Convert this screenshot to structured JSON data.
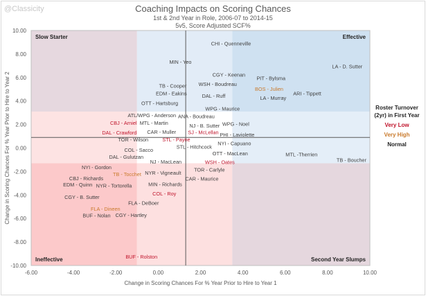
{
  "watermark": "@Classicity",
  "chart_data": {
    "type": "scatter",
    "title": "Coaching Impacts on Scoring Chances",
    "subtitle_1": "1st & 2nd Year in Role, 2006-07 to 2014-15",
    "subtitle_2": "5v5, Score Adjusted SCF%",
    "xlabel": "Change in Scoring Chances For % Year Prior to Hire to Year 1",
    "ylabel": "Change in Scoring Chances For % Year Prior to Hire to Year 2",
    "xlim": [
      -6,
      10
    ],
    "ylim": [
      -10,
      10
    ],
    "xticks": [
      "-6.00",
      "-4.00",
      "-2.00",
      "0.00",
      "2.00",
      "4.00",
      "6.00",
      "8.00",
      "10.00"
    ],
    "yticks": [
      "10.00",
      "8.00",
      "6.00",
      "4.00",
      "2.00",
      "0.00",
      "-2.00",
      "-4.00",
      "-6.00",
      "-8.00",
      "-10.00"
    ],
    "grid": false,
    "reference_lines": {
      "x": 1.3,
      "y": 0.9
    },
    "zone_bounds": {
      "x": [
        -1.0,
        3.5
      ],
      "y": [
        -1.3,
        3.1
      ]
    },
    "zone_colors": [
      [
        "#e6d8df",
        "#e2ecf7",
        "#cfe1f1"
      ],
      [
        "#fde3e3",
        "#ffffff",
        "#e4eef8"
      ],
      [
        "#fcc9ca",
        "#fde0e0",
        "#e5d7de"
      ]
    ],
    "quadrant_labels": {
      "top_left": "Slow Starter",
      "top_right": "Effective",
      "bottom_left": "Ineffective",
      "bottom_right": "Second Year Slumps"
    },
    "legend": {
      "title": "Roster Turnover (2yr) in First Year",
      "items": [
        {
          "key": "very_low",
          "label": "Very Low",
          "color": "#c0142b"
        },
        {
          "key": "very_high",
          "label": "Very High",
          "color": "#c97a2c"
        },
        {
          "key": "normal",
          "label": "Normal",
          "color": "#404040"
        }
      ]
    },
    "points": [
      {
        "label": "CHI - Quenneville",
        "x": 3.44,
        "y": 8.88,
        "group": "normal"
      },
      {
        "label": "LA - D. Sutter",
        "x": 8.93,
        "y": 6.93,
        "group": "normal"
      },
      {
        "label": "MIN - Yeo",
        "x": 1.05,
        "y": 7.32,
        "group": "normal"
      },
      {
        "label": "CGY - Keenan",
        "x": 3.34,
        "y": 6.22,
        "group": "normal"
      },
      {
        "label": "WSH - Boudreau",
        "x": 2.81,
        "y": 5.93,
        "group": "normal"
      },
      {
        "label": "PIT - Bylsma",
        "x": 5.33,
        "y": 5.93,
        "group": "normal"
      },
      {
        "label": "BOS - Julien",
        "x": 5.24,
        "y": 5.52,
        "group": "very_high"
      },
      {
        "label": "TB - Cooper",
        "x": 0.69,
        "y": 5.28,
        "group": "normal"
      },
      {
        "label": "DAL - Ruff",
        "x": 2.62,
        "y": 4.93,
        "group": "normal"
      },
      {
        "label": "LA - Murray",
        "x": 5.43,
        "y": 4.75,
        "group": "normal"
      },
      {
        "label": "ARI - Tippett",
        "x": 7.04,
        "y": 4.63,
        "group": "normal"
      },
      {
        "label": "EDM - Eakins",
        "x": 0.62,
        "y": 4.63,
        "group": "normal"
      },
      {
        "label": "OTT - Hartsburg",
        "x": 0.07,
        "y": 3.8,
        "group": "normal"
      },
      {
        "label": "ATL/WPG - Anderson",
        "x": -0.3,
        "y": 3.27,
        "group": "normal"
      },
      {
        "label": "WPG - Maurice",
        "x": 3.04,
        "y": 3.33,
        "group": "normal"
      },
      {
        "label": "CBJ - Arniel",
        "x": -1.64,
        "y": 2.62,
        "group": "very_low"
      },
      {
        "label": "MTL - Martin",
        "x": -0.2,
        "y": 2.62,
        "group": "normal"
      },
      {
        "label": "ANA - Boudreau",
        "x": 1.8,
        "y": 2.68,
        "group": "normal"
      },
      {
        "label": "NJ - B. Sutter",
        "x": 2.19,
        "y": 2.39,
        "group": "normal"
      },
      {
        "label": "WPG - Noel",
        "x": 3.01,
        "y": 2.04,
        "group": "normal"
      },
      {
        "label": "CAR - Muller",
        "x": 0.16,
        "y": 1.86,
        "group": "normal"
      },
      {
        "label": "PHI - Laviolette",
        "x": 3.73,
        "y": 1.62,
        "group": "normal"
      },
      {
        "label": "SJ - McLellan",
        "x": 3.44,
        "y": 1.33,
        "group": "very_low"
      },
      {
        "label": "TOR - Wilson",
        "x": -1.18,
        "y": 1.21,
        "group": "normal"
      },
      {
        "label": "STL - Payne",
        "x": 0.2,
        "y": 1.21,
        "group": "very_low"
      },
      {
        "label": "STL - Hitchcock",
        "x": 1.7,
        "y": 1.09,
        "group": "normal"
      },
      {
        "label": "DAL - Crawford",
        "x": 0.13,
        "y": 0.8,
        "group": "very_low"
      },
      {
        "label": "COL - Sacco",
        "x": -0.92,
        "y": 0.32,
        "group": "normal"
      },
      {
        "label": "NJ - MacLean",
        "x": 0.36,
        "y": 0.32,
        "group": "normal"
      },
      {
        "label": "NYI - Capuano",
        "x": 2.29,
        "y": 0.38,
        "group": "normal"
      },
      {
        "label": "OTT - MacLean",
        "x": 3.4,
        "y": 0.03,
        "group": "normal"
      },
      {
        "label": "WSH - Oates",
        "x": 2.91,
        "y": -0.2,
        "group": "very_low"
      },
      {
        "label": "DAL - Gulutzan",
        "x": -0.2,
        "y": -0.27,
        "group": "normal"
      },
      {
        "label": "MTL -Therrien",
        "x": 6.77,
        "y": -0.56,
        "group": "normal"
      },
      {
        "label": "TB - Boucher",
        "x": 9.13,
        "y": -1.03,
        "group": "normal"
      },
      {
        "label": "NYI - Gordon",
        "x": -2.91,
        "y": -1.15,
        "group": "normal"
      },
      {
        "label": "NYR - Vigneault",
        "x": 0.23,
        "y": -1.62,
        "group": "normal"
      },
      {
        "label": "TOR - Carlyle",
        "x": 2.42,
        "y": -1.86,
        "group": "normal"
      },
      {
        "label": "CBJ - Richards",
        "x": -3.4,
        "y": -2.1,
        "group": "normal"
      },
      {
        "label": "NYR - Tortorella",
        "x": -2.09,
        "y": -2.21,
        "group": "normal"
      },
      {
        "label": "MIN - Richards",
        "x": 0.33,
        "y": -2.1,
        "group": "normal"
      },
      {
        "label": "CAR - Maurice",
        "x": 1.41,
        "y": -2.63,
        "group": "normal"
      },
      {
        "label": "TB - Tocchet",
        "x": -1.47,
        "y": -2.74,
        "group": "very_high"
      },
      {
        "label": "EDM - Quinn",
        "x": -3.8,
        "y": -3.14,
        "group": "normal"
      },
      {
        "label": "COL - Roy",
        "x": 0.29,
        "y": -3.39,
        "group": "very_low"
      },
      {
        "label": "CGY - B. Sutter",
        "x": -3.6,
        "y": -3.69,
        "group": "normal"
      },
      {
        "label": "FLA - DeBoer",
        "x": -0.69,
        "y": -3.69,
        "group": "normal"
      },
      {
        "label": "CGY - Hartley",
        "x": -1.28,
        "y": -4.22,
        "group": "normal"
      },
      {
        "label": "FLA - Dineen",
        "x": -2.49,
        "y": -4.69,
        "group": "very_high"
      },
      {
        "label": "BUF - Nolan",
        "x": -1.6,
        "y": -5.75,
        "group": "normal"
      },
      {
        "label": "BUF - Rolston",
        "x": -0.79,
        "y": -9.76,
        "group": "very_low"
      }
    ]
  }
}
